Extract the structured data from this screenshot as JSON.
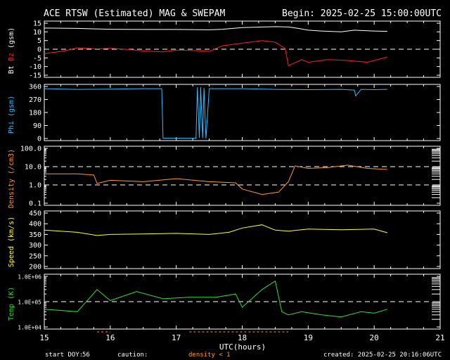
{
  "title": "ACE RTSW (Estimated) MAG & SWEPAM",
  "begin": "Begin: 2025-02-25 15:00:00UTC",
  "xlabel": "UTC(hours)",
  "footer": {
    "start_doy_label": "start DOY:",
    "start_doy_value": "56",
    "caution_label": "caution:",
    "density_note": "density < 1",
    "created": "created: 2025-02-25 20:16:06UTC"
  },
  "colors": {
    "bt": "#ffffff",
    "bz": "#ff2020",
    "phi": "#33bbff",
    "density": "#ff9933",
    "speed": "#ffff33",
    "temp": "#33dd33",
    "frame": "#ffffff",
    "caution": "#ff9933"
  },
  "chart_data": [
    {
      "type": "line",
      "panel": "mag",
      "ylabel_parts": [
        "Bt",
        "Bz",
        "(gsm)"
      ],
      "ylim": [
        -15,
        15
      ],
      "yticks": [
        "15",
        "10",
        "5",
        "0",
        "-5",
        "-10",
        "-15"
      ],
      "xticks": [
        "15",
        "16",
        "17",
        "18",
        "19",
        "20",
        "21"
      ],
      "dashed_reference": [
        0
      ],
      "series": [
        {
          "name": "Bt",
          "x": [
            15.0,
            15.5,
            16.0,
            16.5,
            17.0,
            17.5,
            17.7,
            18.0,
            18.5,
            18.7,
            18.85,
            19.0,
            19.2,
            19.5,
            19.7,
            20.0,
            20.2
          ],
          "y": [
            12.2,
            12.0,
            11.5,
            11.4,
            11.4,
            11.2,
            11.5,
            12.5,
            13.0,
            12.8,
            12.0,
            11.0,
            10.5,
            10.0,
            11.0,
            10.5,
            10.3
          ]
        },
        {
          "name": "Bz",
          "x": [
            15.0,
            15.3,
            15.5,
            15.8,
            16.0,
            16.3,
            16.5,
            16.8,
            17.0,
            17.3,
            17.5,
            17.7,
            18.0,
            18.3,
            18.5,
            18.65,
            18.7,
            18.9,
            19.0,
            19.3,
            19.6,
            19.9,
            20.2
          ],
          "y": [
            -2.5,
            -1.0,
            0.8,
            0.2,
            0.5,
            -0.2,
            -1.0,
            -1.5,
            -0.5,
            -0.8,
            -1.2,
            2.0,
            3.5,
            5.0,
            4.0,
            0.5,
            -9.5,
            -6.0,
            -7.5,
            -6.0,
            -6.5,
            -7.5,
            -4.5
          ]
        }
      ]
    },
    {
      "type": "line",
      "panel": "phi",
      "ylabel": "Phi (gsm)",
      "ylim": [
        0,
        360
      ],
      "yticks": [
        "360",
        "270",
        "180",
        "90",
        "0"
      ],
      "series": [
        {
          "name": "Phi",
          "x": [
            15.0,
            15.5,
            16.0,
            16.5,
            16.78,
            16.8,
            17.3,
            17.32,
            17.35,
            17.37,
            17.4,
            17.42,
            17.45,
            17.5,
            18.0,
            18.5,
            19.0,
            19.5,
            19.7,
            19.72,
            19.8,
            20.0,
            20.2
          ],
          "y": [
            345,
            340,
            342,
            345,
            345,
            2,
            2,
            355,
            5,
            355,
            2,
            350,
            0,
            345,
            345,
            340,
            338,
            340,
            335,
            295,
            340,
            338,
            340
          ]
        }
      ]
    },
    {
      "type": "line",
      "panel": "density",
      "ylabel": "Density (/cm3)",
      "yscale": "log",
      "ylim": [
        0.1,
        100
      ],
      "yticks": [
        "100.0",
        "10.0",
        "1.0",
        "0.1"
      ],
      "dashed_reference": [
        10.0,
        1.0
      ],
      "series": [
        {
          "name": "Density",
          "x": [
            15.0,
            15.5,
            15.75,
            15.8,
            16.0,
            16.5,
            17.0,
            17.5,
            17.9,
            18.0,
            18.3,
            18.55,
            18.7,
            18.8,
            19.0,
            19.3,
            19.6,
            19.9,
            20.2
          ],
          "y": [
            4.0,
            4.0,
            3.5,
            1.2,
            1.8,
            1.5,
            2.2,
            1.5,
            1.3,
            0.6,
            0.3,
            0.4,
            1.5,
            11.0,
            8.0,
            9.0,
            12.0,
            8.0,
            7.0
          ]
        }
      ]
    },
    {
      "type": "line",
      "panel": "speed",
      "ylabel": "Speed (km/s)",
      "ylim": [
        200,
        450
      ],
      "yticks": [
        "450",
        "400",
        "350",
        "300",
        "250",
        "200"
      ],
      "series": [
        {
          "name": "Speed",
          "x": [
            15.0,
            15.5,
            15.8,
            16.0,
            16.5,
            17.0,
            17.5,
            17.8,
            18.0,
            18.3,
            18.5,
            18.7,
            19.0,
            19.5,
            20.0,
            20.2
          ],
          "y": [
            370,
            360,
            345,
            350,
            352,
            355,
            350,
            360,
            380,
            395,
            370,
            365,
            375,
            372,
            375,
            358
          ]
        }
      ]
    },
    {
      "type": "line",
      "panel": "temp",
      "ylabel": "Temp (K)",
      "yscale": "log",
      "ylim": [
        10000,
        1000000
      ],
      "yticks": [
        "1.0E+06",
        "1.0E+05",
        "1.0E+04"
      ],
      "dashed_reference": [
        100000
      ],
      "series": [
        {
          "name": "Temp",
          "x": [
            15.0,
            15.5,
            15.8,
            16.0,
            16.4,
            16.8,
            17.2,
            17.6,
            17.9,
            18.0,
            18.3,
            18.5,
            18.6,
            18.7,
            18.9,
            19.2,
            19.5,
            19.8,
            20.0,
            20.2
          ],
          "y": [
            50000,
            40000,
            300000,
            110000,
            250000,
            130000,
            150000,
            150000,
            200000,
            60000,
            300000,
            650000,
            40000,
            30000,
            40000,
            30000,
            25000,
            40000,
            35000,
            50000
          ]
        }
      ]
    }
  ]
}
